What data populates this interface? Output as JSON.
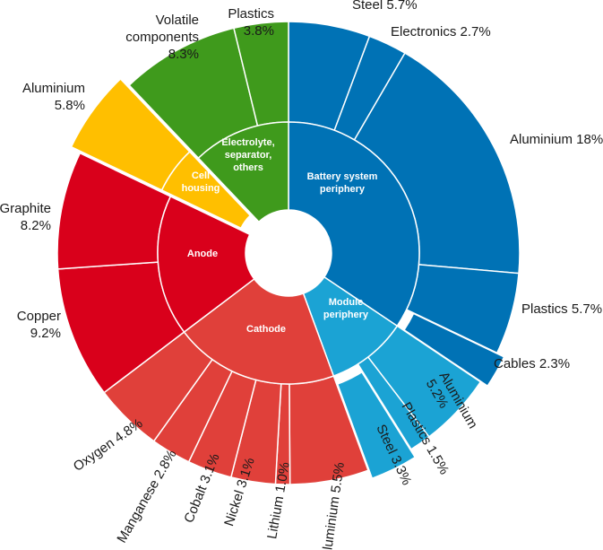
{
  "chart_data": {
    "type": "sunburst",
    "unit": "%",
    "inner": [
      {
        "label": "Battery system periphery",
        "lines": [
          "Battery system",
          "periphery"
        ],
        "color": "#0072b5",
        "outer": [
          0,
          1,
          2,
          3,
          4
        ]
      },
      {
        "label": "Module periphery",
        "lines": [
          "Module",
          "periphery"
        ],
        "color": "#1ba3d4",
        "outer": [
          5,
          6,
          7
        ]
      },
      {
        "label": "Cathode",
        "lines": [
          "Cathode"
        ],
        "color": "#e0403a",
        "outer": [
          8,
          9,
          10,
          11,
          12,
          13
        ]
      },
      {
        "label": "Anode",
        "lines": [
          "Anode"
        ],
        "color": "#d9001b",
        "outer": [
          14,
          15
        ]
      },
      {
        "label": "Cell housing",
        "lines": [
          "Cell",
          "housing"
        ],
        "color": "#ffbf00",
        "outer": [
          16
        ]
      },
      {
        "label": "Electrolyte, separator, others",
        "lines": [
          "Electrolyte,",
          "separator,",
          "others"
        ],
        "color": "#3f9a1c",
        "outer": [
          17,
          18
        ]
      }
    ],
    "outer": [
      {
        "material": "Steel",
        "value": 5.7,
        "display": "5.7%",
        "parent": 0
      },
      {
        "material": "Electronics",
        "value": 2.7,
        "display": "2.7%",
        "parent": 0
      },
      {
        "material": "Aluminium",
        "value": 18,
        "display": "18%",
        "parent": 0
      },
      {
        "material": "Plastics",
        "value": 5.7,
        "display": "5.7%",
        "parent": 0
      },
      {
        "material": "Cables",
        "value": 2.3,
        "display": "2.3%",
        "parent": 0
      },
      {
        "material": "Aluminium",
        "value": 5.2,
        "display": "5.2%",
        "parent": 1
      },
      {
        "material": "Plastics",
        "value": 1.5,
        "display": "1.5%",
        "parent": 1
      },
      {
        "material": "Steel",
        "value": 3.3,
        "display": "3.3%",
        "parent": 1
      },
      {
        "material": "Aluminium",
        "value": 5.5,
        "display": "5.5%",
        "parent": 2
      },
      {
        "material": "Lithium",
        "value": 1.0,
        "display": "1.0%",
        "parent": 2
      },
      {
        "material": "Nickel",
        "value": 3.1,
        "display": "3.1%",
        "parent": 2
      },
      {
        "material": "Cobalt",
        "value": 3.1,
        "display": "3.1%",
        "parent": 2
      },
      {
        "material": "Manganese",
        "value": 2.8,
        "display": "2.8%",
        "parent": 2
      },
      {
        "material": "Oxygen",
        "value": 4.8,
        "display": "4.8%",
        "parent": 2
      },
      {
        "material": "Copper",
        "value": 9.2,
        "display": "9.2%",
        "parent": 3
      },
      {
        "material": "Graphite",
        "value": 8.2,
        "display": "8.2%",
        "parent": 3
      },
      {
        "material": "Aluminium",
        "value": 5.8,
        "display": "5.8%",
        "parent": 4
      },
      {
        "material": "Volatile components",
        "value": 8.3,
        "display": "8.3%",
        "parent": 5
      },
      {
        "material": "Plastics",
        "value": 3.8,
        "display": "3.8%",
        "parent": 5
      }
    ]
  }
}
